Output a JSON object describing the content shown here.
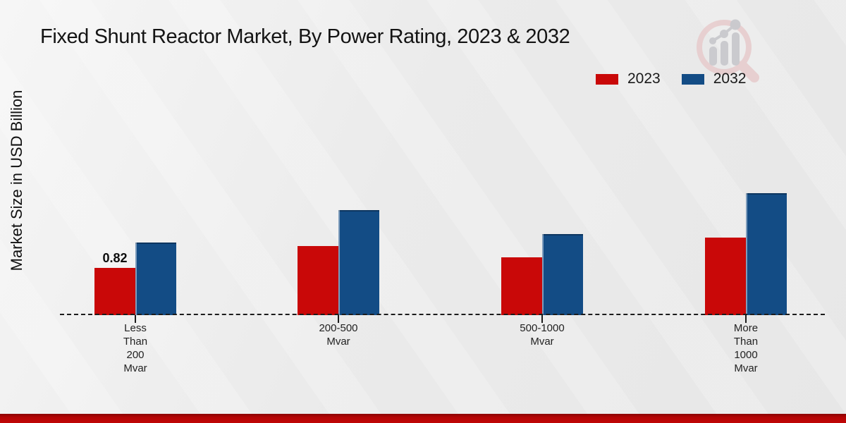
{
  "chart_data": {
    "type": "bar",
    "title": "Fixed Shunt Reactor Market, By Power Rating, 2023 & 2032",
    "ylabel": "Market Size in USD Billion",
    "xlabel": "",
    "unit": "USD Billion",
    "categories": [
      "Less\nThan\n200\nMvar",
      "200-500\nMvar",
      "500-1000\nMvar",
      "More\nThan\n1000\nMvar"
    ],
    "series": [
      {
        "name": "2023",
        "color": "#c90808",
        "values": [
          0.82,
          1.2,
          1.01,
          1.35
        ]
      },
      {
        "name": "2032",
        "color": "#134c85",
        "values": [
          1.26,
          1.82,
          1.41,
          2.12
        ]
      }
    ],
    "annotations": [
      {
        "text": "0.82",
        "category_index": 0,
        "series_index": 0
      }
    ],
    "legend_position": "top-right",
    "grid": false,
    "baseline_style": "dashed",
    "ylim": [
      0,
      2.5
    ]
  },
  "icons": {
    "logo": "magnifier-bar-chart-logo-icon"
  },
  "footer": {
    "band_color": "#b50505"
  }
}
